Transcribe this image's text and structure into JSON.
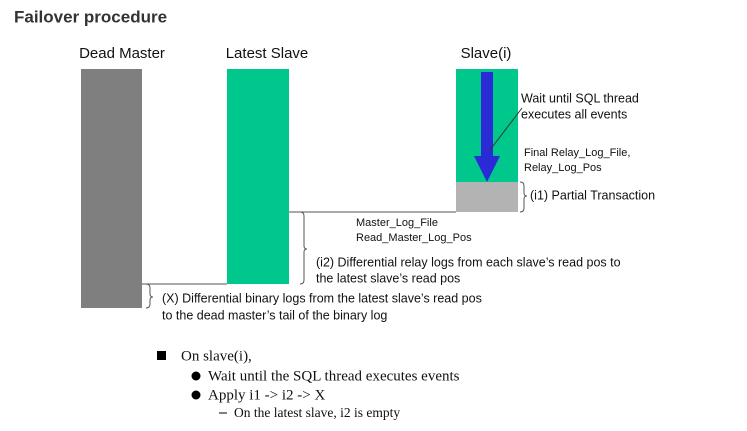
{
  "header": {
    "title": "Failover procedure"
  },
  "columns": [
    {
      "label": "Dead Master"
    },
    {
      "label": "Latest Slave"
    },
    {
      "label": "Slave(i)"
    }
  ],
  "annotations": {
    "wait_sql": [
      "Wait until SQL thread",
      "executes all events"
    ],
    "final_relay": [
      "Final Relay_Log_File,",
      "Relay_Log_Pos"
    ],
    "i1": "(i1) Partial Transaction",
    "master_log": [
      "Master_Log_File",
      "Read_Master_Log_Pos"
    ],
    "i2": [
      "(i2) Differential relay logs from each slave’s read pos to",
      "the latest slave’s read pos"
    ],
    "x": [
      "(X) Differential binary logs from the latest slave’s read pos",
      "to the dead master’s tail of the binary log"
    ]
  },
  "bullets": {
    "main": "On slave(i),",
    "items": [
      "Wait until the SQL thread executes events",
      "Apply i1 -> i2 -> X"
    ],
    "sub": "On the latest slave, i2 is empty"
  }
}
